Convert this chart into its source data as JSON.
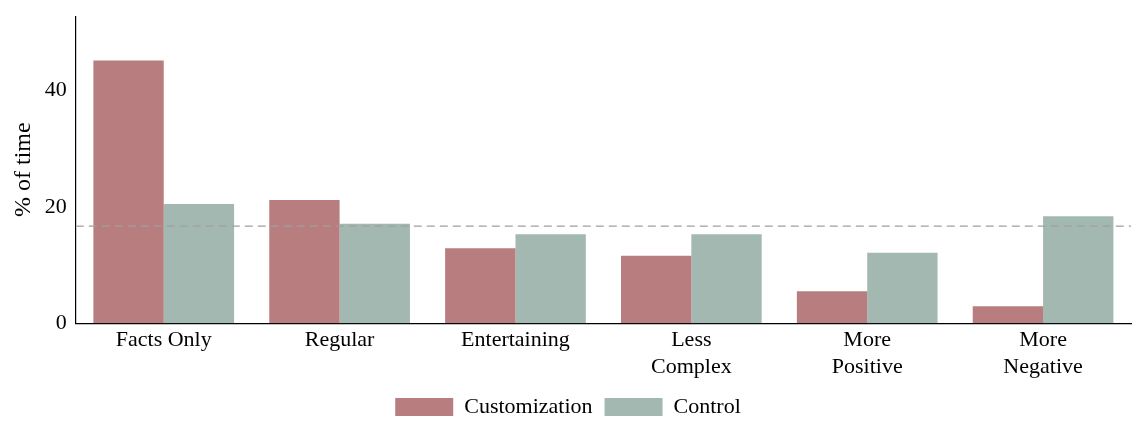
{
  "chart_data": {
    "type": "bar",
    "ylabel": "% of time",
    "categories": [
      "Facts Only",
      "Regular",
      "Entertaining",
      "Less\nComplex",
      "More\nPositive",
      "More\nNegative"
    ],
    "series": [
      {
        "name": "Customization",
        "color": "#b87d7f",
        "values": [
          45.2,
          21.2,
          12.9,
          11.6,
          5.5,
          2.9
        ]
      },
      {
        "name": "Control",
        "color": "#a3b8b0",
        "values": [
          20.5,
          17.1,
          15.3,
          15.3,
          12.1,
          18.4
        ]
      }
    ],
    "ylim": [
      0,
      52.8
    ],
    "yticks": [
      0,
      20,
      40
    ],
    "grid": false,
    "legend": "bottom",
    "ref_lines": [
      {
        "axis": "y",
        "value": 16.7,
        "color": "#a0a0a0",
        "line_style": "dashed"
      }
    ]
  }
}
